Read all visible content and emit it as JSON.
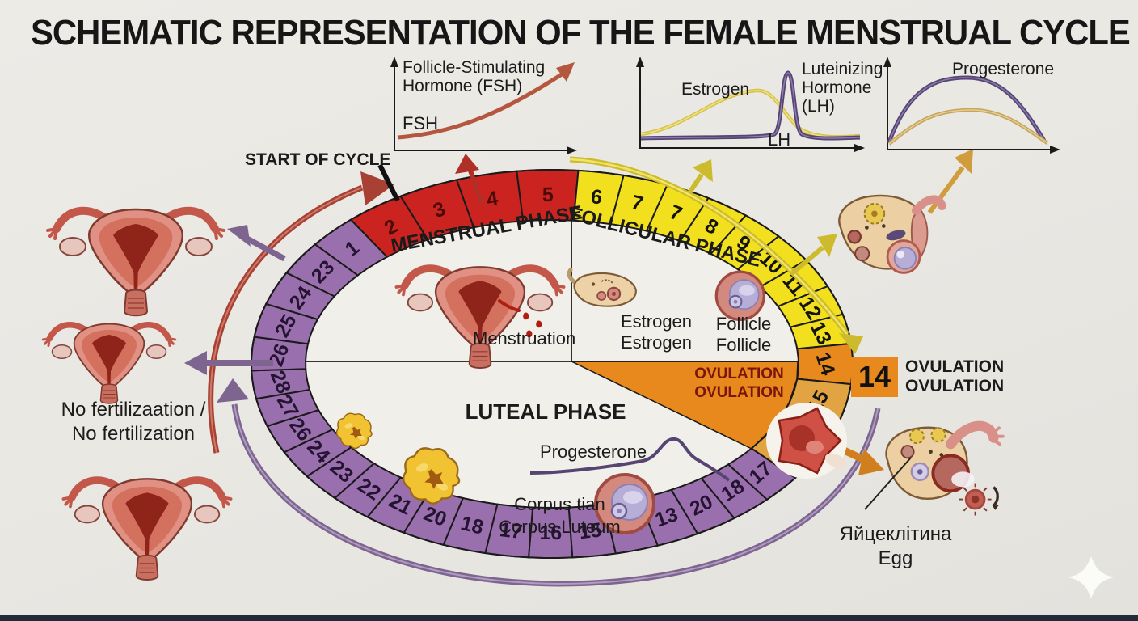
{
  "title": "SCHEMATIC REPRESENTATION OF THE FEMALE MENSTRUAL CYCLE",
  "charts": {
    "fsh": {
      "title_line1": "Follicle-Stimulating",
      "title_line2": "Hormone (FSH)",
      "axis_label": "FSH"
    },
    "estrogen_lh": {
      "estrogen_label": "Estrogen",
      "lh_line1": "Luteinizing",
      "lh_line2": "Hormone",
      "lh_line3": "(LH)",
      "lh_axis_label": "LH"
    },
    "progesterone": {
      "title": "Progesterone"
    }
  },
  "cycle": {
    "start_label": "START OF CYCLE",
    "phase_menstrual": "MENSTRUAL PHASE",
    "phase_follicular": "FOLLICULAR PHASE",
    "phase_luteal": "LUTEAL PHASE",
    "ovulation_wedge": [
      "OVULATION",
      "OVULATION"
    ],
    "ovulation_day_big": "14",
    "ovulation_side": [
      "OVULATION",
      "OVULATION"
    ],
    "groups": [
      {
        "name": "follicular-days",
        "color": "yellow",
        "labels": [
          "6",
          "7",
          "7",
          "8",
          "9",
          "10",
          "11",
          "12",
          "13"
        ]
      },
      {
        "name": "ovulation-day",
        "color": "orange",
        "labels": [
          "14"
        ]
      },
      {
        "name": "post-ovulation-day",
        "color": "tan",
        "labels": [
          "15"
        ]
      },
      {
        "name": "ovulation-gap",
        "color": "tan",
        "labels": [
          ""
        ]
      },
      {
        "name": "luteal-days",
        "color": "purple",
        "labels": [
          "17",
          "18",
          "20",
          "13",
          "14",
          "15",
          "16",
          "17",
          "18",
          "20",
          "21",
          "22",
          "23",
          "24",
          "26",
          "27",
          "28"
        ]
      },
      {
        "name": "premenstrual-days",
        "color": "purple",
        "labels": [
          "26",
          "25",
          "24",
          "23",
          "1"
        ]
      },
      {
        "name": "menstrual-days",
        "color": "red",
        "labels": [
          "2",
          "3",
          "4",
          "5"
        ]
      }
    ]
  },
  "labels": {
    "menstruation": "Menstruation",
    "estrogen": [
      "Estrogen",
      "Estrogen"
    ],
    "follicle": [
      "Follicle",
      "Follicle"
    ],
    "progesterone_small": "Progesterone",
    "corpus": [
      "Corpus tian",
      "Corpus Luteum"
    ],
    "no_fert": [
      "No fertilizaation /",
      "No fertilization"
    ],
    "egg": [
      "Яйцеклітина",
      "Egg"
    ]
  },
  "colors": {
    "background": "#e9e7e2",
    "segment_red": "#cb2420",
    "segment_yellow": "#f2e01f",
    "segment_purple": "#9a6fae",
    "segment_orange": "#e8891d",
    "segment_tan": "#e2a343",
    "arrow_red": "#a84034",
    "arrow_purple": "#7d6590",
    "arrow_yellow": "#cdbb2e",
    "arrow_orange": "#d07f1e",
    "curve_fsh": "#b5573f",
    "curve_estrogen": "#d6c34a",
    "curve_lh": "#564473",
    "curve_progesterone_tan": "#c8a45a",
    "ovulation_text": "#7a150c"
  }
}
